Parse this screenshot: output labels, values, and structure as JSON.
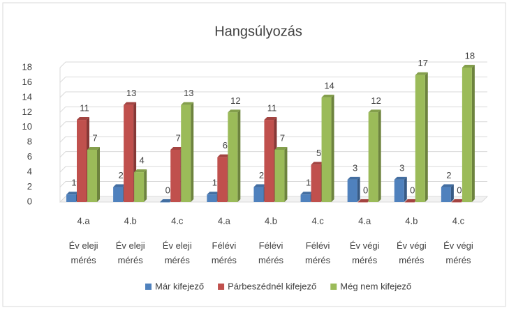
{
  "chart_data": {
    "type": "bar3d",
    "title": "Hangsúlyozás",
    "categories": [
      "4.a",
      "4.b",
      "4.c",
      "4.a",
      "4.b",
      "4.c",
      "4.a",
      "4.b",
      "4.c"
    ],
    "groups": [
      "Év eleji mérés",
      "Év eleji mérés",
      "Év eleji mérés",
      "Félévi mérés",
      "Félévi mérés",
      "Félévi mérés",
      "Év végi mérés",
      "Év végi mérés",
      "Év végi mérés"
    ],
    "series": [
      {
        "name": "Már kifejező",
        "color": "#4f81bd",
        "values": [
          1,
          2,
          0,
          1,
          2,
          1,
          3,
          3,
          2
        ]
      },
      {
        "name": "Párbeszédnél kifejező",
        "color": "#c0504d",
        "values": [
          11,
          13,
          7,
          6,
          11,
          5,
          0,
          0,
          0
        ]
      },
      {
        "name": "Még nem kifejező",
        "color": "#9bbb59",
        "values": [
          7,
          4,
          13,
          12,
          7,
          14,
          12,
          17,
          18
        ]
      }
    ],
    "ylim": [
      0,
      18
    ],
    "yticks": [
      0,
      2,
      4,
      6,
      8,
      10,
      12,
      14,
      16,
      18
    ],
    "grid": true,
    "legend": "bottom"
  }
}
